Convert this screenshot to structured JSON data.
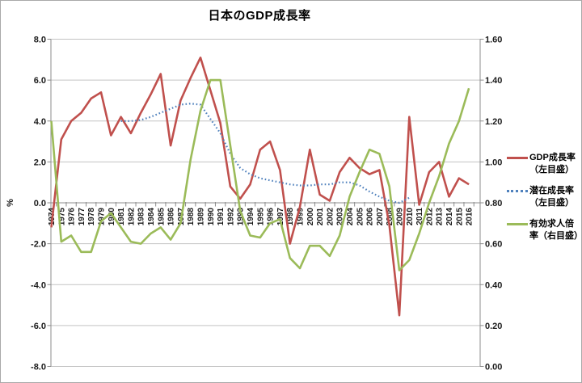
{
  "page_title": "日本のGDP成長率",
  "chart_data": {
    "type": "line",
    "title": "日本のGDP成長率",
    "grid": true,
    "legend_position": "right",
    "x": [
      "1974",
      "1975",
      "1976",
      "1977",
      "1978",
      "1979",
      "1980",
      "1981",
      "1982",
      "1983",
      "1984",
      "1985",
      "1986",
      "1987",
      "1988",
      "1989",
      "1990",
      "1991",
      "1992",
      "1993",
      "1994",
      "1995",
      "1996",
      "1997",
      "1998",
      "1999",
      "2000",
      "2001",
      "2002",
      "2003",
      "2004",
      "2005",
      "2006",
      "2007",
      "2008",
      "2009",
      "2010",
      "2011",
      "2012",
      "2013",
      "2014",
      "2015",
      "2016"
    ],
    "left_axis": {
      "label": "%",
      "min": -8.0,
      "max": 8.0,
      "tick_step": 2.0,
      "tick_labels": [
        "8.0",
        "6.0",
        "4.0",
        "2.0",
        "0.0",
        "-2.0",
        "-4.0",
        "-6.0",
        "-8.0"
      ]
    },
    "right_axis": {
      "min": 0.0,
      "max": 1.6,
      "tick_step": 0.2,
      "tick_labels": [
        "1.60",
        "1.40",
        "1.20",
        "1.00",
        "0.80",
        "0.60",
        "0.40",
        "0.20",
        "0.00"
      ]
    },
    "series": [
      {
        "id": "gdp-growth-line",
        "name": "GDP成長率（左目盛）",
        "label_lines": [
          "GDP成長率",
          "（左目盛）"
        ],
        "axis": "left",
        "color": "#C0504D",
        "line_style": "solid",
        "values": [
          -1.2,
          3.1,
          4.0,
          4.4,
          5.1,
          5.4,
          3.3,
          4.2,
          3.4,
          4.4,
          5.3,
          6.3,
          2.8,
          5.0,
          6.1,
          7.1,
          5.5,
          3.9,
          0.8,
          0.2,
          0.9,
          2.6,
          3.0,
          1.6,
          -2.0,
          -0.2,
          2.6,
          0.4,
          0.1,
          1.5,
          2.2,
          1.7,
          1.4,
          1.6,
          -1.1,
          -5.5,
          4.2,
          -0.1,
          1.5,
          2.0,
          0.3,
          1.2,
          0.9
        ]
      },
      {
        "id": "potential-growth-line",
        "name": "潜在成長率（左目盛）",
        "label_lines": [
          "潜在成長率",
          "（左目盛）"
        ],
        "axis": "left",
        "color": "#4F81BD",
        "line_style": "dotted",
        "values": [
          null,
          null,
          null,
          null,
          null,
          null,
          null,
          4.0,
          4.0,
          4.05,
          4.2,
          4.4,
          4.6,
          4.8,
          4.85,
          4.8,
          4.1,
          3.4,
          2.4,
          1.7,
          1.4,
          1.2,
          1.1,
          1.0,
          0.9,
          0.85,
          0.85,
          0.9,
          0.9,
          1.0,
          1.0,
          0.85,
          0.55,
          0.3,
          0.1,
          0.0,
          0.25,
          null,
          null,
          null,
          null,
          null,
          null
        ]
      },
      {
        "id": "job-openings-ratio-line",
        "name": "有効求人倍率（右目盛）",
        "label_lines": [
          "有効求人倍",
          "率（右目盛）"
        ],
        "axis": "right",
        "color": "#9BBB59",
        "line_style": "solid",
        "values": [
          1.2,
          0.61,
          0.64,
          0.56,
          0.56,
          0.71,
          0.75,
          0.68,
          0.61,
          0.6,
          0.65,
          0.68,
          0.62,
          0.7,
          1.01,
          1.25,
          1.4,
          1.4,
          1.08,
          0.76,
          0.64,
          0.63,
          0.7,
          0.72,
          0.53,
          0.48,
          0.59,
          0.59,
          0.54,
          0.64,
          0.83,
          0.95,
          1.06,
          1.04,
          0.88,
          0.47,
          0.52,
          0.65,
          0.8,
          0.93,
          1.09,
          1.2,
          1.36
        ]
      }
    ]
  }
}
